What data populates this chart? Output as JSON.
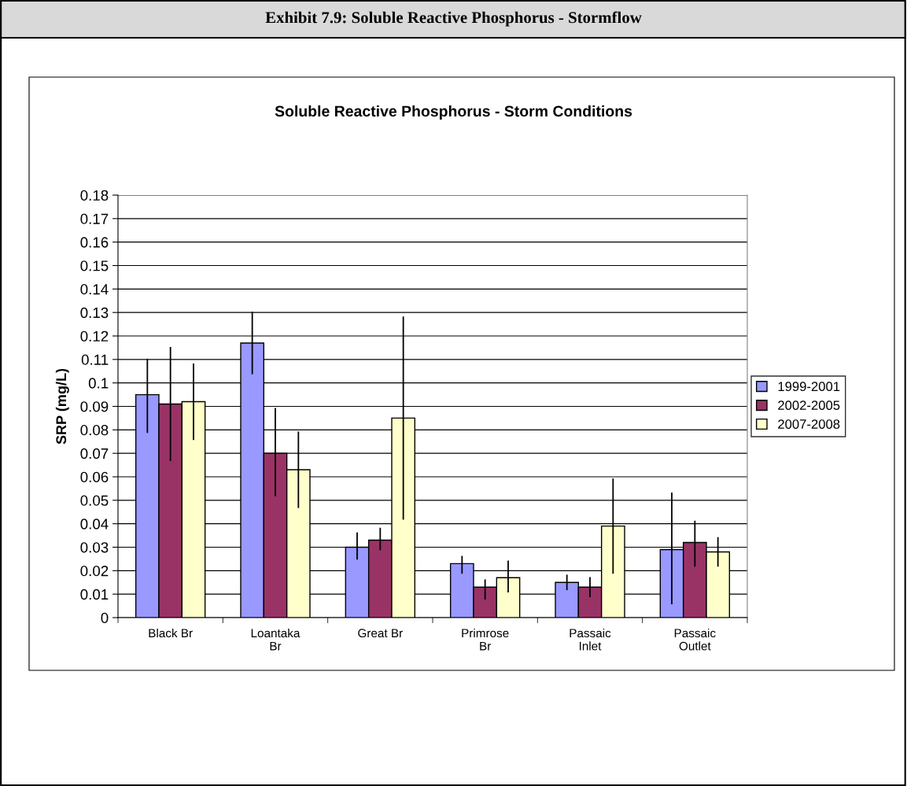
{
  "chart_data": {
    "type": "bar",
    "title": "Exhibit 7.9: Soluble Reactive Phosphorus - Stormflow",
    "subtitle": "Soluble Reactive Phosphorus - Storm Conditions",
    "ylabel": "SRP (mg/L)",
    "categories": [
      "Black Br",
      "Loantaka\nBr",
      "Great Br",
      "Primrose\nBr",
      "Passaic\nInlet",
      "Passaic\nOutlet"
    ],
    "series": [
      {
        "name": "1999-2001",
        "color": "#9999ff",
        "values": [
          0.095,
          0.117,
          0.03,
          0.023,
          0.015,
          0.029
        ],
        "errors": [
          [
            0.079,
            0.11
          ],
          [
            0.104,
            0.13
          ],
          [
            0.025,
            0.036
          ],
          [
            0.019,
            0.026
          ],
          [
            0.012,
            0.018
          ],
          [
            0.006,
            0.053
          ]
        ]
      },
      {
        "name": "2002-2005",
        "color": "#993366",
        "values": [
          0.091,
          0.07,
          0.033,
          0.013,
          0.013,
          0.032
        ],
        "errors": [
          [
            0.067,
            0.115
          ],
          [
            0.052,
            0.089
          ],
          [
            0.029,
            0.038
          ],
          [
            0.008,
            0.016
          ],
          [
            0.009,
            0.017
          ],
          [
            0.022,
            0.041
          ]
        ]
      },
      {
        "name": "2007-2008",
        "color": "#ffffcc",
        "values": [
          0.092,
          0.063,
          0.085,
          0.017,
          0.039,
          0.028
        ],
        "errors": [
          [
            0.076,
            0.108
          ],
          [
            0.047,
            0.079
          ],
          [
            0.042,
            0.128
          ],
          [
            0.011,
            0.024
          ],
          [
            0.019,
            0.059
          ],
          [
            0.022,
            0.034
          ]
        ]
      }
    ],
    "ylim": [
      0,
      0.18
    ],
    "yticks": [
      0,
      0.01,
      0.02,
      0.03,
      0.04,
      0.05,
      0.06,
      0.07,
      0.08,
      0.09,
      0.1,
      0.11,
      0.12,
      0.13,
      0.14,
      0.15,
      0.16,
      0.17,
      0.18
    ],
    "grid": "y",
    "legend": "right"
  }
}
